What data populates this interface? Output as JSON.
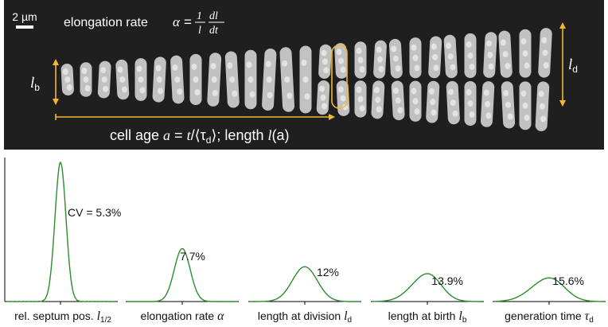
{
  "micrograph": {
    "scalebar_label": "2 µm",
    "rate_label": "elongation rate",
    "rate_symbol": "α",
    "eq_sign": "=",
    "frac_num": "1",
    "frac_den": "l",
    "frac2_num": "dl",
    "frac2_den": "dt",
    "lb_main": "l",
    "lb_sub": "b",
    "ld_main": "l",
    "ld_sub": "d",
    "age_prefix": "cell age ",
    "age_var": "a",
    "age_eq": " = ",
    "age_t": "t",
    "age_slash": "/⟨τ",
    "age_sub": "d",
    "age_close": "⟩; length ",
    "age_l": "l",
    "age_paren": "(a)",
    "background_color": "#1f1f1f",
    "accent_color": "#f5b731"
  },
  "distributions": {
    "line_color": "#2e8b2e",
    "panels": [
      {
        "label": "rel. septum pos. ",
        "var": "l",
        "sub": "1/2",
        "cv_label": "CV = 5.3%",
        "cv": 5.3,
        "peak": 1.0
      },
      {
        "label": "elongation rate ",
        "var": "α",
        "sub": "",
        "cv_label": "7.7%",
        "cv": 7.7,
        "peak": 0.38
      },
      {
        "label": "length at division ",
        "var": "l",
        "sub": "d",
        "cv_label": "12%",
        "cv": 12.0,
        "peak": 0.25
      },
      {
        "label": "length at birth ",
        "var": "l",
        "sub": "b",
        "cv_label": "13.9%",
        "cv": 13.9,
        "peak": 0.2
      },
      {
        "label": "generation time ",
        "var": "τ",
        "sub": "d",
        "cv_label": "15.6%",
        "cv": 15.6,
        "peak": 0.17
      }
    ]
  }
}
